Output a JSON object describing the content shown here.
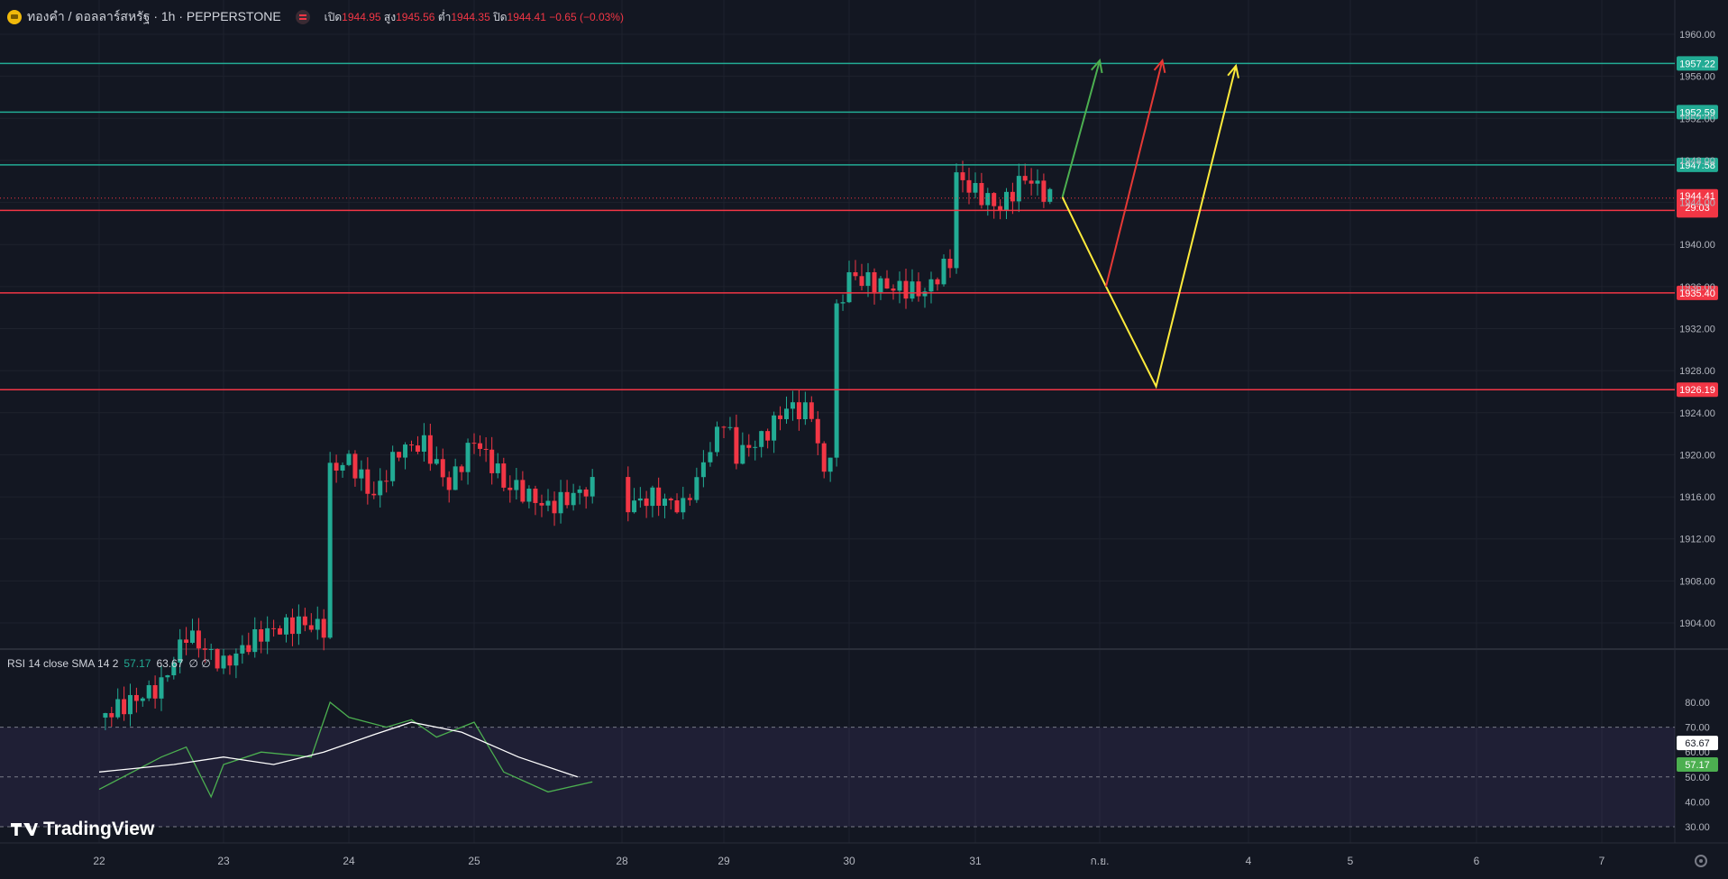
{
  "header": {
    "symbol": "ทองคำ / ดอลลาร์สหรัฐ · 1h · PEPPERSTONE",
    "open_label": "เปิด",
    "open": "1944.95",
    "high_label": "สูง",
    "high": "1945.56",
    "low_label": "ต่ำ",
    "low": "1944.35",
    "close_label": "ปิด",
    "close": "1944.41",
    "change": "−0.65 (−0.03%)"
  },
  "rsi_header": {
    "label": "RSI 14 close SMA 14 2",
    "value1": "57.17",
    "value2": "63.67",
    "extra": "∅ ∅"
  },
  "logo_text": "TradingView",
  "colors": {
    "background": "#131722",
    "up": "#22ab94",
    "down": "#f23645",
    "green_level": "#22ab94",
    "red_level": "#f23645",
    "arrow_green": "#4caf50",
    "arrow_red": "#e53935",
    "arrow_yellow": "#ffeb3b",
    "rsi_line": "#4caf50",
    "rsi_sma": "#ffffff"
  },
  "chart_data": {
    "type": "candlestick",
    "price_axis": {
      "ylim": [
        1902,
        1962
      ],
      "ticks": [
        "1960.00",
        "1956.00",
        "1952.00",
        "1948.00",
        "1944.00",
        "1940.00",
        "1936.00",
        "1932.00",
        "1928.00",
        "1924.00",
        "1920.00",
        "1916.00",
        "1912.00",
        "1908.00",
        "1904.00"
      ]
    },
    "x_axis": {
      "ticks": [
        "22",
        "23",
        "24",
        "25",
        "28",
        "29",
        "30",
        "31",
        "ก.ย.",
        "4",
        "5",
        "6",
        "7"
      ]
    },
    "current_price": {
      "price": 1944.41,
      "label": "1944.41",
      "countdown": "29:03"
    },
    "levels": [
      {
        "price": 1957.22,
        "label": "1957.22",
        "color": "green"
      },
      {
        "price": 1952.59,
        "label": "1952.59",
        "color": "green"
      },
      {
        "price": 1947.58,
        "label": "1947.58",
        "color": "green"
      },
      {
        "price": 1943.24,
        "label": "1943.24",
        "color": "red"
      },
      {
        "price": 1935.4,
        "label": "1935.40",
        "color": "red"
      },
      {
        "price": 1926.19,
        "label": "1926.19",
        "color": "red"
      }
    ],
    "close_path": [
      {
        "x": "22",
        "y": 1895.0
      },
      {
        "x": "22.5",
        "y": 1898.0
      },
      {
        "x": "22.7",
        "y": 1903.0
      },
      {
        "x": "23",
        "y": 1900.0
      },
      {
        "x": "23.3",
        "y": 1903.0
      },
      {
        "x": "23.6",
        "y": 1904.0
      },
      {
        "x": "23.8",
        "y": 1903.5
      },
      {
        "x": "23.85",
        "y": 1918.5
      },
      {
        "x": "24",
        "y": 1919.5
      },
      {
        "x": "24.2",
        "y": 1916.0
      },
      {
        "x": "24.4",
        "y": 1920.5
      },
      {
        "x": "24.6",
        "y": 1921.0
      },
      {
        "x": "24.8",
        "y": 1917.0
      },
      {
        "x": "25",
        "y": 1921.5
      },
      {
        "x": "25.2",
        "y": 1917.5
      },
      {
        "x": "25.5",
        "y": 1915.0
      },
      {
        "x": "25.8",
        "y": 1917.0
      },
      {
        "x": "27.7",
        "y": 1918.0
      },
      {
        "x": "27.75",
        "y": 1905.0
      },
      {
        "x": "27.9",
        "y": 1911.0
      },
      {
        "x": "28",
        "y": 1915.0
      },
      {
        "x": "28.3",
        "y": 1916.0
      },
      {
        "x": "28.6",
        "y": 1915.0
      },
      {
        "x": "28.8",
        "y": 1919.0
      },
      {
        "x": "29",
        "y": 1923.5
      },
      {
        "x": "29.1",
        "y": 1920.0
      },
      {
        "x": "29.3",
        "y": 1921.5
      },
      {
        "x": "29.5",
        "y": 1924.5
      },
      {
        "x": "29.7",
        "y": 1924.0
      },
      {
        "x": "29.8",
        "y": 1918.0
      },
      {
        "x": "29.85",
        "y": 1920.5
      },
      {
        "x": "29.9",
        "y": 1933.5
      },
      {
        "x": "30",
        "y": 1937.0
      },
      {
        "x": "30.3",
        "y": 1936.0
      },
      {
        "x": "30.6",
        "y": 1935.5
      },
      {
        "x": "30.8",
        "y": 1938.5
      },
      {
        "x": "30.85",
        "y": 1946.5
      },
      {
        "x": "31",
        "y": 1945.0
      },
      {
        "x": "31.2",
        "y": 1943.5
      },
      {
        "x": "31.4",
        "y": 1946.5
      },
      {
        "x": "31.6",
        "y": 1944.41
      }
    ],
    "scenario_paths": [
      {
        "color": "green",
        "points": [
          {
            "x": "31.7",
            "y": 1944.5
          },
          {
            "x": "ก.ย.",
            "y": 1957.5
          }
        ]
      },
      {
        "color": "yellow",
        "points": [
          {
            "x": "31.7",
            "y": 1944.5
          },
          {
            "x": "ก.ย.+0.05",
            "y": 1936.0
          },
          {
            "x": "ก.ย.+0.45",
            "y": 1926.5
          },
          {
            "x": "4-0.1",
            "y": 1957.0
          }
        ]
      },
      {
        "color": "red",
        "points": [
          {
            "x": "ก.ย.+0.05",
            "y": 1936.0
          },
          {
            "x": "ก.ย.+0.5",
            "y": 1957.5
          }
        ]
      }
    ],
    "rsi": {
      "ylim": [
        26,
        84
      ],
      "ticks": [
        "80.00",
        "70.00",
        "60.00",
        "50.00",
        "40.00",
        "30.00"
      ],
      "band": [
        30,
        70
      ],
      "current_rsi": "57.17",
      "current_sma": "63.67",
      "rsi_path": [
        {
          "x": "22",
          "y": 45
        },
        {
          "x": "22.5",
          "y": 58
        },
        {
          "x": "22.7",
          "y": 62
        },
        {
          "x": "22.9",
          "y": 42
        },
        {
          "x": "23",
          "y": 55
        },
        {
          "x": "23.3",
          "y": 60
        },
        {
          "x": "23.7",
          "y": 58
        },
        {
          "x": "23.85",
          "y": 80
        },
        {
          "x": "24",
          "y": 74
        },
        {
          "x": "24.3",
          "y": 70
        },
        {
          "x": "24.5",
          "y": 73
        },
        {
          "x": "24.7",
          "y": 66
        },
        {
          "x": "25",
          "y": 72
        },
        {
          "x": "25.2",
          "y": 52
        },
        {
          "x": "25.5",
          "y": 44
        },
        {
          "x": "25.8",
          "y": 48
        },
        {
          "x": "27.7",
          "y": 57
        },
        {
          "x": "27.75",
          "y": 29
        },
        {
          "x": "28",
          "y": 52
        },
        {
          "x": "28.3",
          "y": 55
        },
        {
          "x": "28.7",
          "y": 52
        },
        {
          "x": "28.85",
          "y": 65
        },
        {
          "x": "29",
          "y": 74
        },
        {
          "x": "29.1",
          "y": 58
        },
        {
          "x": "29.3",
          "y": 60
        },
        {
          "x": "29.5",
          "y": 70
        },
        {
          "x": "29.7",
          "y": 63
        },
        {
          "x": "29.8",
          "y": 42
        },
        {
          "x": "29.85",
          "y": 43
        },
        {
          "x": "29.9",
          "y": 70
        },
        {
          "x": "30",
          "y": 74
        },
        {
          "x": "30.3",
          "y": 70
        },
        {
          "x": "30.5",
          "y": 65
        },
        {
          "x": "30.7",
          "y": 70
        },
        {
          "x": "30.8",
          "y": 80
        },
        {
          "x": "31",
          "y": 73
        },
        {
          "x": "31.2",
          "y": 65
        },
        {
          "x": "31.4",
          "y": 67
        },
        {
          "x": "31.6",
          "y": 57.17
        }
      ],
      "sma_path": [
        {
          "x": "22",
          "y": 52
        },
        {
          "x": "22.6",
          "y": 55
        },
        {
          "x": "23",
          "y": 58
        },
        {
          "x": "23.4",
          "y": 55
        },
        {
          "x": "23.8",
          "y": 60
        },
        {
          "x": "24.2",
          "y": 67
        },
        {
          "x": "24.5",
          "y": 72
        },
        {
          "x": "24.9",
          "y": 68
        },
        {
          "x": "25.3",
          "y": 58
        },
        {
          "x": "25.7",
          "y": 50
        },
        {
          "x": "27.8",
          "y": 46
        },
        {
          "x": "28.2",
          "y": 49
        },
        {
          "x": "28.7",
          "y": 51
        },
        {
          "x": "29",
          "y": 57
        },
        {
          "x": "29.5",
          "y": 62
        },
        {
          "x": "29.9",
          "y": 60
        },
        {
          "x": "30.2",
          "y": 64
        },
        {
          "x": "30.6",
          "y": 69
        },
        {
          "x": "31",
          "y": 70
        },
        {
          "x": "31.3",
          "y": 70
        },
        {
          "x": "31.6",
          "y": 63.67
        }
      ]
    }
  }
}
